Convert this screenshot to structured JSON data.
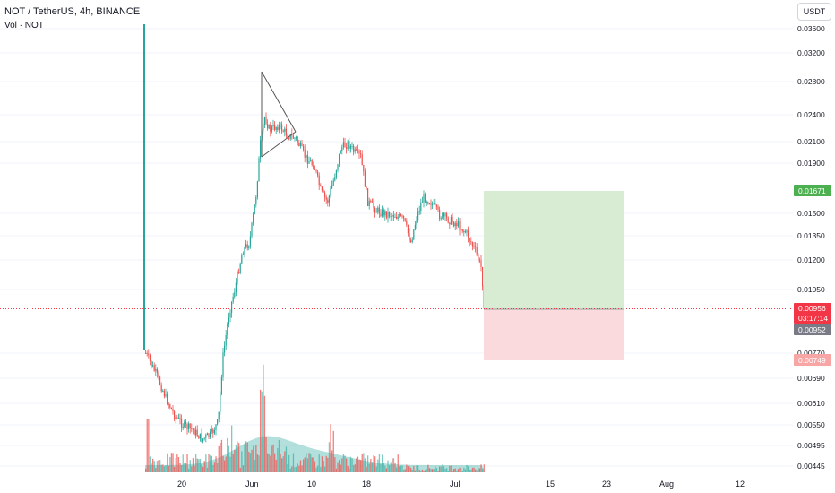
{
  "header": {
    "symbol": "NOT / TetherUS, 4h, BINANCE",
    "volume_label": "Vol · NOT"
  },
  "currency_button": "USDT",
  "price_axis": {
    "ticks": [
      "0.03600",
      "0.03200",
      "0.02800",
      "0.02400",
      "0.02100",
      "0.01900",
      "0.01500",
      "0.01350",
      "0.01200",
      "0.01050",
      "0.00770",
      "0.00690",
      "0.00610",
      "0.00550",
      "0.00495",
      "0.00445"
    ]
  },
  "time_axis": {
    "ticks": [
      "20",
      "Jun",
      "10",
      "18",
      "Jul",
      "15",
      "23",
      "Aug",
      "12"
    ]
  },
  "tags": {
    "target": "0.01671",
    "last_price": "0.00956",
    "countdown": "03:17:14",
    "prev_close": "0.00952",
    "stop": "0.00749"
  },
  "colors": {
    "up": "#26a69a",
    "down": "#ef5350",
    "target_zone": "#d8ecd3",
    "stop_zone": "#fadadd",
    "target_tag": "#4caf50",
    "price_tag": "#f23645",
    "prev_tag": "#787b86",
    "stop_tag": "#f7a5a5",
    "grid": "#f0f3fa"
  }
}
